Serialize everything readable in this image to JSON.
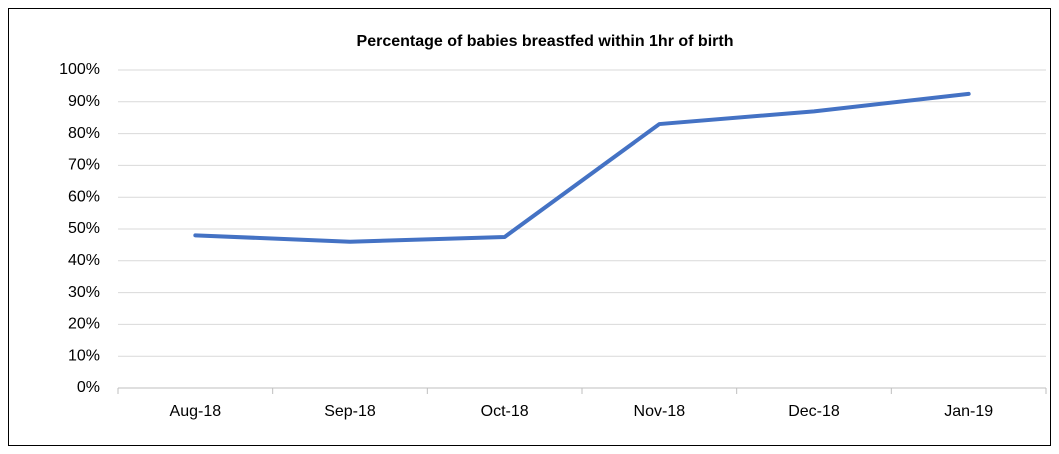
{
  "chart_data": {
    "type": "line",
    "title": "Percentage of babies breastfed within 1hr of birth",
    "categories": [
      "Aug-18",
      "Sep-18",
      "Oct-18",
      "Nov-18",
      "Dec-18",
      "Jan-19"
    ],
    "series": [
      {
        "name": "Percentage",
        "color": "#4472c4",
        "values": [
          48,
          46,
          47.5,
          83,
          87,
          92.5
        ]
      }
    ],
    "ylim": [
      0,
      100
    ],
    "yticks": [
      {
        "value": 0,
        "label": "0%"
      },
      {
        "value": 10,
        "label": "10%"
      },
      {
        "value": 20,
        "label": "20%"
      },
      {
        "value": 30,
        "label": "30%"
      },
      {
        "value": 40,
        "label": "40%"
      },
      {
        "value": 50,
        "label": "50%"
      },
      {
        "value": 60,
        "label": "60%"
      },
      {
        "value": 70,
        "label": "70%"
      },
      {
        "value": 80,
        "label": "80%"
      },
      {
        "value": 90,
        "label": "90%"
      },
      {
        "value": 100,
        "label": "100%"
      }
    ],
    "grid": true
  }
}
